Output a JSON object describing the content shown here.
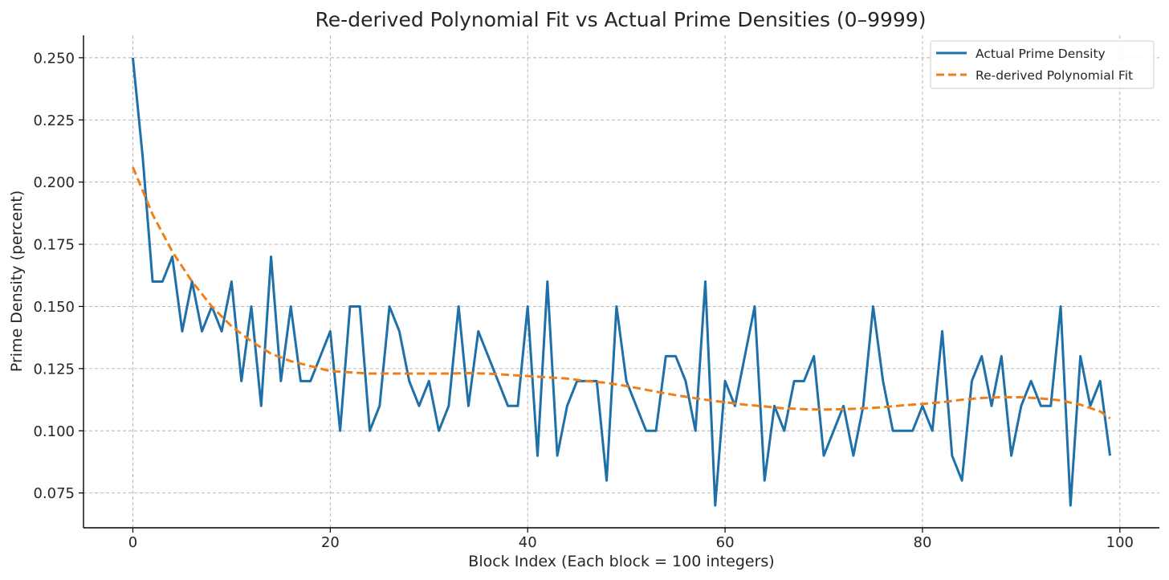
{
  "chart_data": {
    "type": "line",
    "title": "Re-derived Polynomial Fit vs Actual Prime Densities (0–9999)",
    "xlabel": "Block Index (Each block = 100 integers)",
    "ylabel": "Prime Density (percent)",
    "xlim": [
      -5,
      104
    ],
    "ylim": [
      0.061,
      0.259
    ],
    "xticks": [
      0,
      20,
      40,
      60,
      80,
      100
    ],
    "xtick_labels": [
      "0",
      "20",
      "40",
      "60",
      "80",
      "100"
    ],
    "yticks": [
      0.075,
      0.1,
      0.125,
      0.15,
      0.175,
      0.2,
      0.225,
      0.25
    ],
    "ytick_labels": [
      "0.075",
      "0.100",
      "0.125",
      "0.150",
      "0.175",
      "0.200",
      "0.225",
      "0.250"
    ],
    "grid": true,
    "legend_position": "top-right",
    "series": [
      {
        "name": "Actual Prime Density",
        "color": "#1f6fa8",
        "style": "solid",
        "x": [
          0,
          1,
          2,
          3,
          4,
          5,
          6,
          7,
          8,
          9,
          10,
          11,
          12,
          13,
          14,
          15,
          16,
          17,
          18,
          19,
          20,
          21,
          22,
          23,
          24,
          25,
          26,
          27,
          28,
          29,
          30,
          31,
          32,
          33,
          34,
          35,
          36,
          37,
          38,
          39,
          40,
          41,
          42,
          43,
          44,
          45,
          46,
          47,
          48,
          49,
          50,
          51,
          52,
          53,
          54,
          55,
          56,
          57,
          58,
          59,
          60,
          61,
          62,
          63,
          64,
          65,
          66,
          67,
          68,
          69,
          70,
          71,
          72,
          73,
          74,
          75,
          76,
          77,
          78,
          79,
          80,
          81,
          82,
          83,
          84,
          85,
          86,
          87,
          88,
          89,
          90,
          91,
          92,
          93,
          94,
          95,
          96,
          97,
          98,
          99
        ],
        "values": [
          0.25,
          0.21,
          0.16,
          0.16,
          0.17,
          0.14,
          0.16,
          0.14,
          0.15,
          0.14,
          0.16,
          0.12,
          0.15,
          0.11,
          0.17,
          0.12,
          0.15,
          0.12,
          0.12,
          0.13,
          0.14,
          0.1,
          0.15,
          0.15,
          0.1,
          0.11,
          0.15,
          0.14,
          0.12,
          0.11,
          0.12,
          0.1,
          0.11,
          0.15,
          0.11,
          0.14,
          0.13,
          0.12,
          0.11,
          0.11,
          0.15,
          0.09,
          0.16,
          0.09,
          0.11,
          0.12,
          0.12,
          0.12,
          0.08,
          0.15,
          0.12,
          0.11,
          0.1,
          0.1,
          0.13,
          0.13,
          0.12,
          0.1,
          0.16,
          0.07,
          0.12,
          0.11,
          0.13,
          0.15,
          0.08,
          0.11,
          0.1,
          0.12,
          0.12,
          0.13,
          0.09,
          0.1,
          0.11,
          0.09,
          0.11,
          0.15,
          0.12,
          0.1,
          0.1,
          0.1,
          0.11,
          0.1,
          0.14,
          0.09,
          0.08,
          0.12,
          0.13,
          0.11,
          0.13,
          0.09,
          0.11,
          0.12,
          0.11,
          0.11,
          0.15,
          0.07,
          0.13,
          0.11,
          0.12,
          0.09
        ]
      },
      {
        "name": "Re-derived Polynomial Fit",
        "color": "#f07f1a",
        "style": "dashed",
        "x": [
          0,
          2,
          4,
          6,
          8,
          10,
          12,
          14,
          16,
          18,
          20,
          22,
          24,
          26,
          28,
          30,
          32,
          34,
          36,
          38,
          40,
          42,
          44,
          46,
          48,
          50,
          52,
          54,
          56,
          58,
          60,
          62,
          64,
          66,
          68,
          70,
          72,
          74,
          76,
          78,
          80,
          82,
          84,
          86,
          88,
          90,
          92,
          94,
          96,
          98,
          99
        ],
        "values": [
          0.206,
          0.187,
          0.172,
          0.16,
          0.15,
          0.142,
          0.136,
          0.131,
          0.128,
          0.126,
          0.124,
          0.1235,
          0.123,
          0.123,
          0.123,
          0.123,
          0.123,
          0.1232,
          0.123,
          0.1225,
          0.122,
          0.1215,
          0.121,
          0.12,
          0.1193,
          0.118,
          0.1165,
          0.115,
          0.1137,
          0.1125,
          0.1115,
          0.1105,
          0.1098,
          0.109,
          0.1087,
          0.1085,
          0.1087,
          0.109,
          0.1095,
          0.1102,
          0.1108,
          0.1115,
          0.1125,
          0.1132,
          0.1135,
          0.1135,
          0.113,
          0.1122,
          0.1105,
          0.1078,
          0.105
        ]
      }
    ]
  }
}
